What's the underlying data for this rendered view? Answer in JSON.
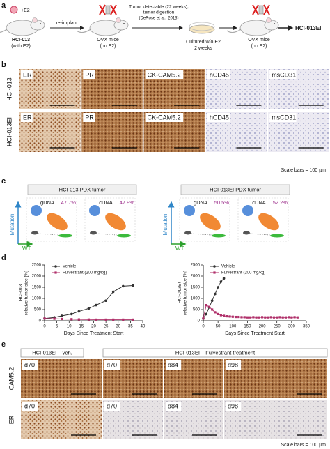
{
  "panel_a": {
    "label": "a",
    "e2": "+E2",
    "source": {
      "name": "HCI-013",
      "note": "(with E2)"
    },
    "step1": "re-implant",
    "mouse1": {
      "name": "OVX mice",
      "note": "(no E2)"
    },
    "step2": [
      "Tumor detectable (22 weeks),",
      "tumor digestion",
      "(DeRose et al., 2013)"
    ],
    "step3": [
      "Cultured w/o E2",
      "2 weeks"
    ],
    "mouse2": {
      "name": "OVX mice",
      "note": "(no E2)"
    },
    "result": "HCI-013EI"
  },
  "panel_b": {
    "label": "b",
    "rows": [
      "HCI-013",
      "HCI-013EI"
    ],
    "columns": [
      "ER",
      "PR",
      "CK-CAM5.2",
      "hCD45",
      "msCD31"
    ],
    "scale": "Scale bars = 100 µm"
  },
  "panel_c": {
    "label": "c",
    "groups": [
      {
        "title": "HCI-013 PDX tumor",
        "plots": [
          {
            "name": "gDNA",
            "percent": "47.7%"
          },
          {
            "name": "cDNA",
            "percent": "47.9%"
          }
        ],
        "y_axis": "Mutation",
        "x_axis": "WT"
      },
      {
        "title": "HCI-013EI PDX tumor",
        "plots": [
          {
            "name": "gDNA",
            "percent": "50.5%"
          },
          {
            "name": "cDNA",
            "percent": "52.2%"
          }
        ],
        "y_axis": "Mutation",
        "x_axis": "WT"
      }
    ]
  },
  "panel_d": {
    "label": "d"
  },
  "chart_data": [
    {
      "type": "line",
      "ylabel": [
        "HCI-013",
        "relative tumor size [%]"
      ],
      "xlabel": "Days Since Treatment Start",
      "x": [
        0,
        4,
        7,
        11,
        14,
        18,
        21,
        25,
        28,
        32,
        36
      ],
      "series": [
        {
          "name": "Vehicle",
          "color": "#333333",
          "marker": "circle",
          "values": [
            100,
            150,
            220,
            300,
            420,
            550,
            700,
            900,
            1300,
            1550,
            1580
          ]
        },
        {
          "name": "Fulvestrant (200 mg/kg)",
          "color": "#b0306a",
          "marker": "square",
          "values": [
            100,
            90,
            80,
            70,
            60,
            55,
            50,
            50,
            50,
            50,
            50
          ]
        }
      ],
      "xlim": [
        0,
        40
      ],
      "xticks": [
        0,
        5,
        10,
        15,
        20,
        25,
        30,
        35,
        40
      ],
      "ylim": [
        0,
        2500
      ],
      "yticks": [
        0,
        500,
        1000,
        1500,
        2000,
        2500
      ],
      "legend": "top-left"
    },
    {
      "type": "line",
      "ylabel": [
        "HCI-013EI",
        "relative tumor size [%]"
      ],
      "xlabel": "Days Since Treatment Start",
      "x": [
        0,
        10,
        20,
        30,
        40,
        50,
        60,
        70,
        80,
        90,
        100,
        110,
        120,
        130,
        140,
        150,
        160,
        170,
        180,
        190,
        200,
        210,
        220,
        230,
        240,
        250,
        260,
        270,
        280,
        290,
        300,
        310,
        320
      ],
      "series": [
        {
          "name": "Vehicle",
          "color": "#333333",
          "marker": "circle",
          "values": [
            100,
            300,
            600,
            900,
            1200,
            1500,
            1750,
            1900,
            null,
            null,
            null,
            null,
            null,
            null,
            null,
            null,
            null,
            null,
            null,
            null,
            null,
            null,
            null,
            null,
            null,
            null,
            null,
            null,
            null,
            null,
            null,
            null,
            null
          ]
        },
        {
          "name": "Fulvestrant (200 mg/kg)",
          "color": "#b0306a",
          "marker": "square",
          "values": [
            100,
            700,
            620,
            500,
            380,
            300,
            250,
            220,
            200,
            190,
            180,
            170,
            170,
            160,
            160,
            150,
            150,
            160,
            150,
            150,
            160,
            150,
            150,
            160,
            150,
            150,
            160,
            150,
            150,
            160,
            150,
            160,
            150
          ]
        }
      ],
      "xlim": [
        0,
        350
      ],
      "xticks": [
        0,
        50,
        100,
        150,
        200,
        250,
        300,
        350
      ],
      "ylim": [
        0,
        2500
      ],
      "yticks": [
        0,
        500,
        1000,
        1500,
        2000,
        2500
      ],
      "legend": "top-left"
    }
  ],
  "panel_e": {
    "label": "e",
    "groups": [
      "HCI-013EI – veh.",
      "HCI-013EI – Fulvestrant treatment"
    ],
    "rows": [
      "CAM5.2",
      "ER"
    ],
    "days": [
      [
        "d70",
        "d70",
        "d84",
        "d98"
      ],
      [
        "d70",
        "d70",
        "d84",
        "d98"
      ]
    ],
    "scale": "Scale bars = 100 µm"
  }
}
